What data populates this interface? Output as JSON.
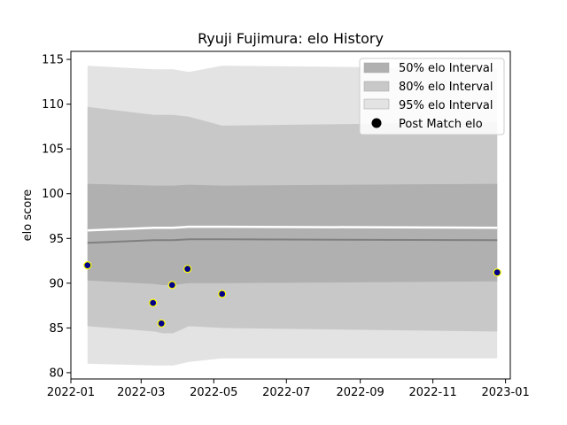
{
  "chart_data": {
    "type": "area",
    "title": "Ryuji Fujimura: elo History",
    "xlabel": "",
    "ylabel": "elo score",
    "xlim": [
      "2022-01-01",
      "2023-01-05"
    ],
    "ylim": [
      79.3,
      115.9
    ],
    "x_ticks": [
      "2022-01",
      "2022-03",
      "2022-05",
      "2022-07",
      "2022-09",
      "2022-11",
      "2023-01"
    ],
    "y_ticks": [
      80,
      85,
      90,
      95,
      100,
      105,
      110,
      115
    ],
    "grid": false,
    "legend_position": "top-right",
    "legend": {
      "band50": "50% elo Interval",
      "band80": "80% elo Interval",
      "band95": "95% elo Interval",
      "points": "Post Match elo"
    },
    "dates": [
      "2022-01-15",
      "2022-03-12",
      "2022-03-19",
      "2022-03-28",
      "2022-04-10",
      "2022-05-08",
      "2022-12-25"
    ],
    "mean": [
      94.5,
      94.8,
      94.8,
      94.8,
      94.9,
      94.9,
      94.8
    ],
    "intervals": {
      "band50": {
        "lower": [
          90.3,
          89.9,
          89.8,
          89.8,
          90.0,
          90.0,
          90.2
        ],
        "upper": [
          101.1,
          100.9,
          100.9,
          100.9,
          101.0,
          100.9,
          101.1
        ]
      },
      "band80": {
        "lower": [
          85.2,
          84.6,
          84.4,
          84.4,
          85.2,
          85.0,
          84.6
        ],
        "upper": [
          109.7,
          108.8,
          108.8,
          108.8,
          108.6,
          107.6,
          108.0
        ]
      },
      "band95": {
        "lower": [
          81.0,
          80.8,
          80.8,
          80.8,
          81.2,
          81.6,
          81.6
        ],
        "upper": [
          114.3,
          113.9,
          113.9,
          113.9,
          113.6,
          114.3,
          114.0
        ]
      }
    },
    "post_match_elo": [
      {
        "x": "2022-01-15",
        "y": 92.0
      },
      {
        "x": "2022-03-11",
        "y": 87.8
      },
      {
        "x": "2022-03-18",
        "y": 85.5
      },
      {
        "x": "2022-03-27",
        "y": 89.8
      },
      {
        "x": "2022-04-09",
        "y": 91.6
      },
      {
        "x": "2022-05-08",
        "y": 88.8
      },
      {
        "x": "2022-12-25",
        "y": 91.2
      }
    ],
    "colors": {
      "band50": "#b0b0b0",
      "band80": "#c8c8c8",
      "band95": "#e3e3e3",
      "mean_line": "#808080",
      "point_fill": "#00008b",
      "point_edge": "#ffff00"
    }
  }
}
